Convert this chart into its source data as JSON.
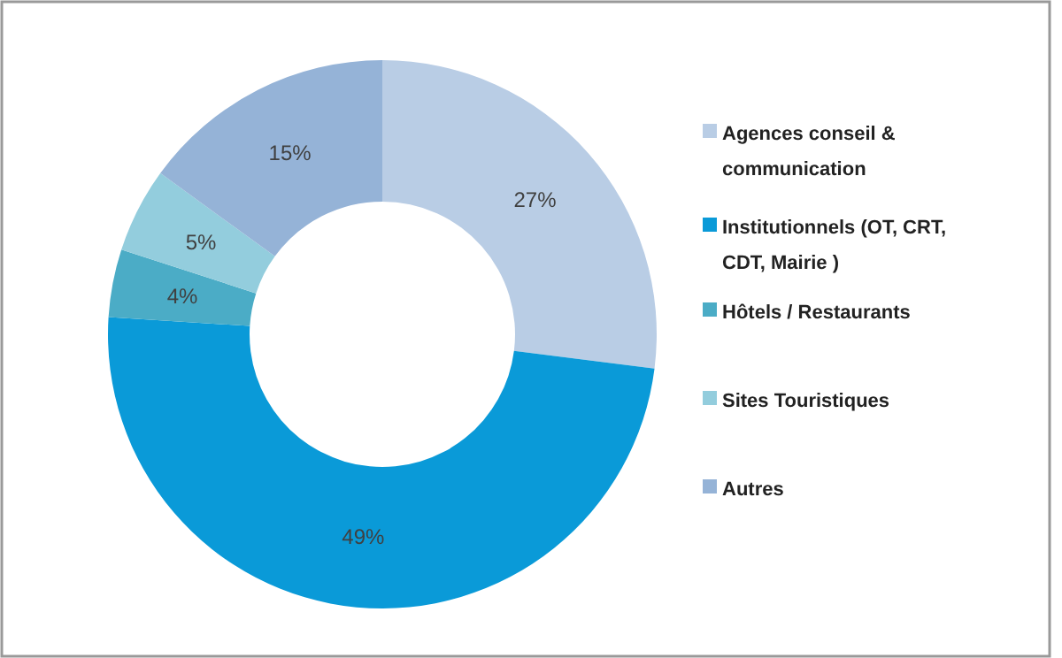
{
  "chart_data": {
    "type": "donut",
    "categories": [
      "Agences conseil & communication",
      "Institutionnels (OT, CRT, CDT, Mairie )",
      "Hôtels / Restaurants",
      "Sites Touristiques",
      "Autres"
    ],
    "values": [
      27,
      49,
      4,
      5,
      15
    ],
    "colors": [
      "#b9cde5",
      "#0a9ad8",
      "#4bacc6",
      "#93cddd",
      "#95b3d7"
    ],
    "value_labels": [
      "27%",
      "49%",
      "4%",
      "5%",
      "15%"
    ],
    "legend": "right"
  }
}
